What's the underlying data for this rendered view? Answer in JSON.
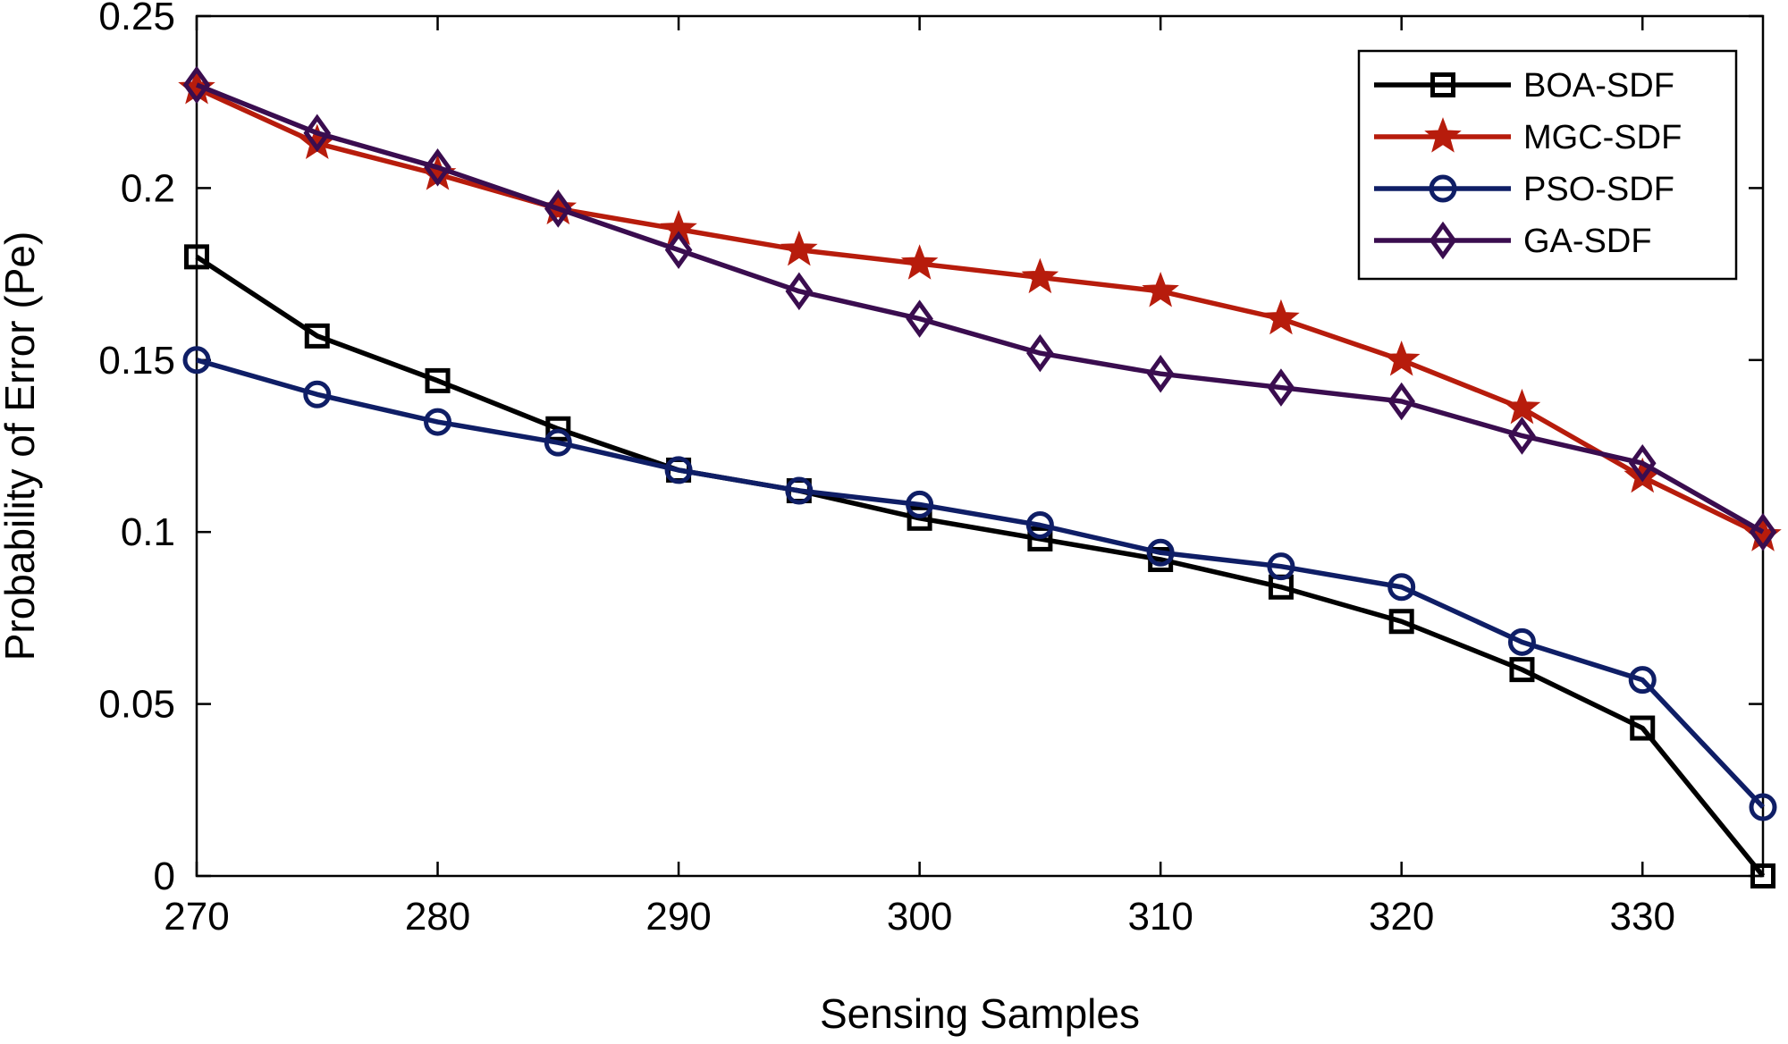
{
  "chart_data": {
    "type": "line",
    "title": "",
    "xlabel": "Sensing Samples",
    "ylabel": "Probability of Error (Pe)",
    "xlim": [
      270,
      335
    ],
    "ylim": [
      0,
      0.25
    ],
    "xticks": [
      270,
      280,
      290,
      300,
      310,
      320,
      330
    ],
    "xtick_labels": [
      "270",
      "280",
      "290",
      "300",
      "310",
      "320",
      "330"
    ],
    "yticks": [
      0,
      0.05,
      0.1,
      0.15,
      0.2,
      0.25
    ],
    "ytick_labels": [
      "0",
      "0.05",
      "0.1",
      "0.15",
      "0.2",
      "0.25"
    ],
    "grid": false,
    "legend_position": "top-right",
    "x": [
      270,
      275,
      280,
      285,
      290,
      295,
      300,
      305,
      310,
      315,
      320,
      325,
      330,
      335
    ],
    "series": [
      {
        "name": "BOA-SDF",
        "color": "#000000",
        "marker": "square",
        "values": [
          0.18,
          0.157,
          0.144,
          0.13,
          0.118,
          0.112,
          0.104,
          0.098,
          0.092,
          0.084,
          0.074,
          0.06,
          0.043,
          0.0
        ]
      },
      {
        "name": "MGC-SDF",
        "color": "#b71c0c",
        "marker": "star",
        "values": [
          0.229,
          0.213,
          0.204,
          0.194,
          0.188,
          0.182,
          0.178,
          0.174,
          0.17,
          0.162,
          0.15,
          0.136,
          0.116,
          0.099
        ]
      },
      {
        "name": "PSO-SDF",
        "color": "#0f1e66",
        "marker": "circle",
        "values": [
          0.15,
          0.14,
          0.132,
          0.126,
          0.118,
          0.112,
          0.108,
          0.102,
          0.094,
          0.09,
          0.084,
          0.068,
          0.057,
          0.02
        ]
      },
      {
        "name": "GA-SDF",
        "color": "#3a0d4f",
        "marker": "diamond",
        "values": [
          0.23,
          0.216,
          0.206,
          0.194,
          0.182,
          0.17,
          0.162,
          0.152,
          0.146,
          0.142,
          0.138,
          0.128,
          0.12,
          0.1
        ]
      }
    ]
  }
}
